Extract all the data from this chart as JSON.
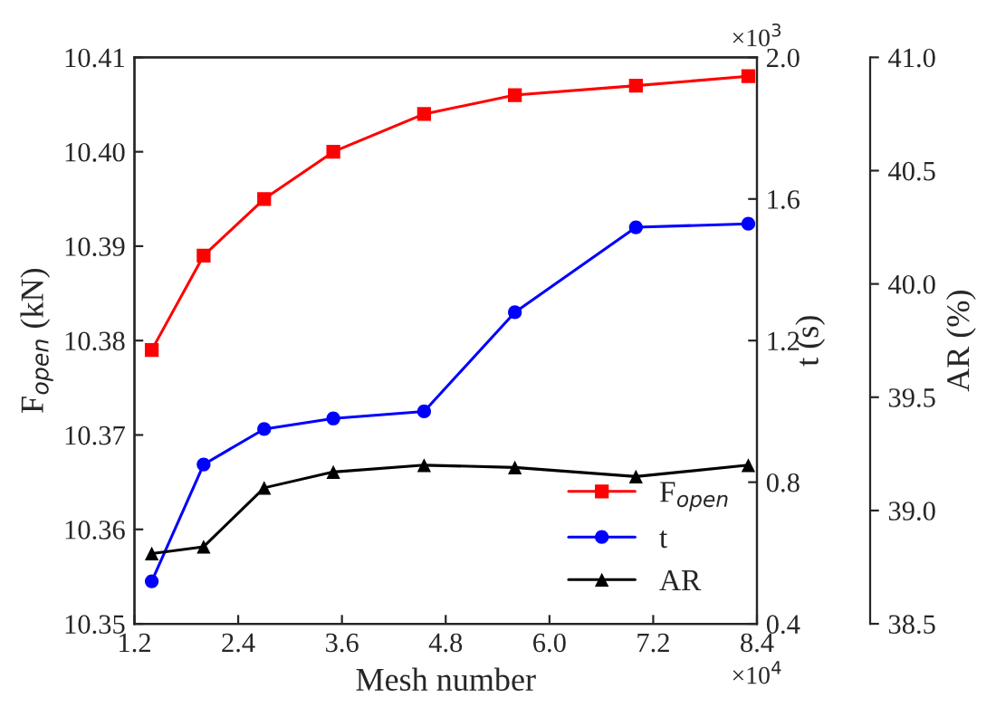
{
  "chart_data": {
    "type": "line",
    "xlabel": "Mesh number",
    "ylabel": "F$_{open}$ (kN)",
    "y2label": "t (s)",
    "y3label": "AR (%)",
    "x": [
      1.4,
      2.0,
      2.7,
      3.5,
      4.55,
      5.6,
      7.0,
      8.3
    ],
    "series": [
      {
        "name": "F$_{open}$",
        "color": "#ff0000",
        "marker": "square",
        "values": [
          10.379,
          10.389,
          10.395,
          10.4,
          10.404,
          10.406,
          10.407,
          10.408
        ]
      },
      {
        "name": "t",
        "color": "#0000ff",
        "marker": "circle",
        "axis": "y2",
        "values": [
          0.52,
          0.85,
          0.95,
          0.98,
          1.0,
          1.28,
          1.52,
          1.53
        ]
      },
      {
        "name": "AR",
        "color": "#000000",
        "marker": "triangle",
        "axis": "y3",
        "values": [
          38.81,
          38.84,
          39.1,
          39.17,
          39.2,
          39.19,
          39.15,
          39.2
        ]
      }
    ],
    "xlim": [
      1.2,
      8.4
    ],
    "xticks": [
      1.2,
      2.4,
      3.6,
      4.8,
      {
        "value": 6.0,
        "label": "6.0"
      },
      7.2,
      8.4
    ],
    "ylim": [
      10.35,
      10.41
    ],
    "yticks": [
      {
        "value": 10.35,
        "label": "10.35"
      },
      {
        "value": 10.36,
        "label": "10.36"
      },
      {
        "value": 10.37,
        "label": "10.37"
      },
      {
        "value": 10.38,
        "label": "10.38"
      },
      {
        "value": 10.39,
        "label": "10.39"
      },
      {
        "value": 10.4,
        "label": "10.40"
      },
      {
        "value": 10.41,
        "label": "10.41"
      }
    ],
    "y2lim": [
      0.4,
      2.0
    ],
    "y2ticks": [
      0.4,
      0.8,
      1.2,
      1.6,
      {
        "value": 2.0,
        "label": "2.0"
      }
    ],
    "y3lim": [
      38.5,
      41.0
    ],
    "y3ticks": [
      38.5,
      {
        "value": 39.0,
        "label": "39.0"
      },
      39.5,
      {
        "value": 40.0,
        "label": "40.0"
      },
      40.5,
      {
        "value": 41.0,
        "label": "41.0"
      }
    ],
    "annotations": [
      "×10$^{3}$",
      "×10$^{4}$"
    ],
    "legend": "bottom right",
    "grid": false
  }
}
